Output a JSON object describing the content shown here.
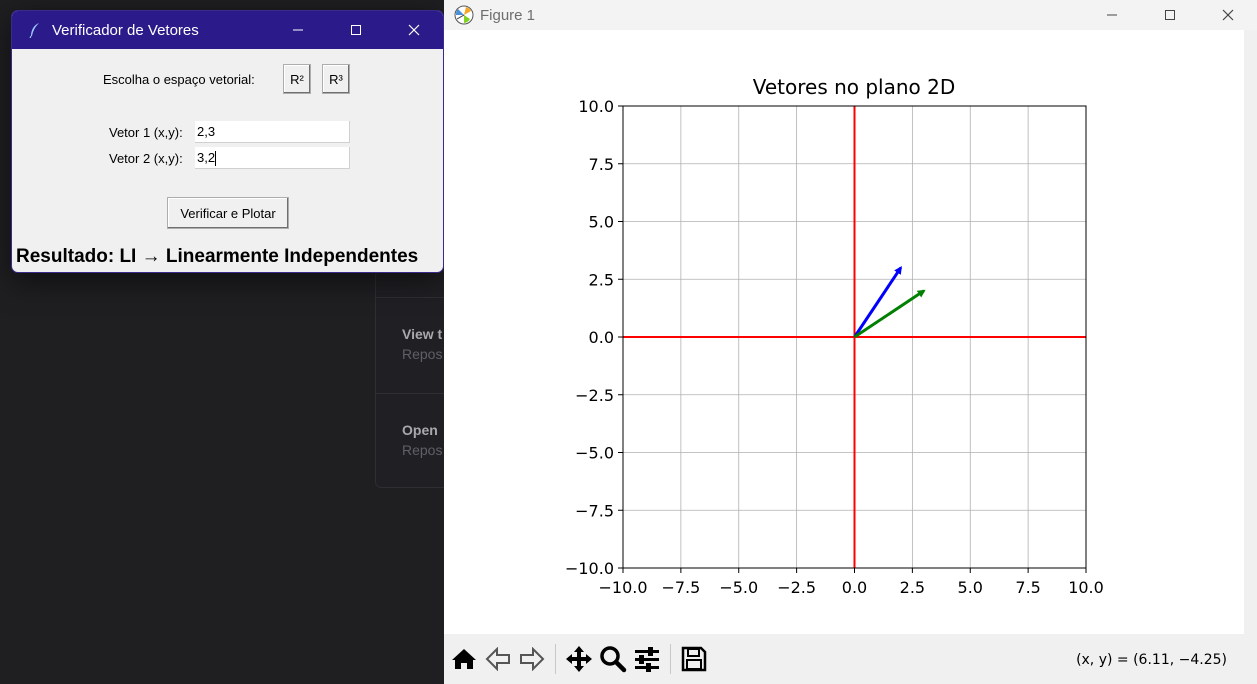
{
  "tk_window": {
    "title": "Verificador de Vetores",
    "space_label": "Escolha o espaço vetorial:",
    "buttons": {
      "r2": "R²",
      "r3": "R³",
      "verify": "Verificar e Plotar"
    },
    "vector1_label": "Vetor 1 (x,y):",
    "vector1_value": "2,3",
    "vector2_label": "Vetor 2 (x,y):",
    "vector2_value": "3,2",
    "result": "Resultado: LI → Linearmente Independentes"
  },
  "background_app": {
    "items": [
      {
        "title": "View t",
        "subtitle": "Repos"
      },
      {
        "title": "Open ",
        "subtitle": "Repos"
      }
    ]
  },
  "figure_window": {
    "title": "Figure 1",
    "coords_readout": "(x, y) = (6.11, −4.25)",
    "toolbar_icons": [
      "home-icon",
      "back-icon",
      "forward-icon",
      "pan-icon",
      "zoom-icon",
      "configure-icon",
      "save-icon"
    ]
  },
  "chart_data": {
    "type": "line",
    "title": "Vetores no plano 2D",
    "xlabel": "",
    "ylabel": "",
    "xlim": [
      -10,
      10
    ],
    "ylim": [
      -10,
      10
    ],
    "grid": true,
    "xticks": [
      "−10.0",
      "−7.5",
      "−5.0",
      "−2.5",
      "0.0",
      "2.5",
      "5.0",
      "7.5",
      "10.0"
    ],
    "yticks": [
      "10.0",
      "7.5",
      "5.0",
      "2.5",
      "0.0",
      "−2.5",
      "−5.0",
      "−7.5",
      "−10.0"
    ],
    "tick_values": [
      -10,
      -7.5,
      -5,
      -2.5,
      0,
      2.5,
      5,
      7.5,
      10
    ],
    "axes_lines_color": "#ff0000",
    "vectors": [
      {
        "x": 2,
        "y": 3,
        "color": "#0000ff"
      },
      {
        "x": 3,
        "y": 2,
        "color": "#008000"
      }
    ]
  }
}
